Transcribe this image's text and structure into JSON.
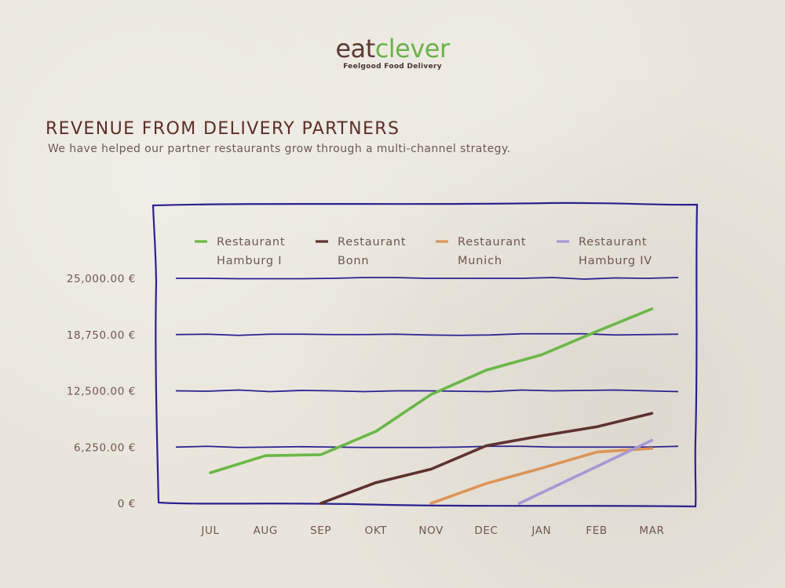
{
  "logo": {
    "word_part1": "eat",
    "word_part2": "clever",
    "tagline": "Feelgood Food Delivery"
  },
  "header": {
    "title": "REVENUE FROM DELIVERY PARTNERS",
    "subtitle": "We have helped our partner restaurants grow through a multi-channel strategy."
  },
  "colors": {
    "frame": "#2b2190",
    "title": "#5c2e28",
    "axis_text": "#6e5752"
  },
  "chart_data": {
    "type": "line",
    "title": "REVENUE FROM DELIVERY PARTNERS",
    "xlabel": "",
    "ylabel": "",
    "categories": [
      "JUL",
      "AUG",
      "SEP",
      "OKT",
      "NOV",
      "DEC",
      "JAN",
      "FEB",
      "MAR"
    ],
    "y_ticks": [
      0,
      6250,
      12500,
      18750,
      25000
    ],
    "y_tick_labels": [
      "0 €",
      "6,250.00 €",
      "12,500.00 €",
      "18,750.00 €",
      "25,000.00 €"
    ],
    "ylim": [
      0,
      25000
    ],
    "grid": true,
    "legend_position": "top",
    "series": [
      {
        "name": "Restaurant Hamburg I",
        "color": "#6ab848",
        "points": [
          [
            0,
            3400
          ],
          [
            1,
            5300
          ],
          [
            2,
            5400
          ],
          [
            3,
            8000
          ],
          [
            4,
            12100
          ],
          [
            5,
            14800
          ],
          [
            6,
            16500
          ],
          [
            7,
            19100
          ],
          [
            8,
            21600
          ]
        ]
      },
      {
        "name": "Restaurant Bonn",
        "color": "#5e3230",
        "points": [
          [
            2,
            0
          ],
          [
            3,
            2300
          ],
          [
            4,
            3800
          ],
          [
            5,
            6400
          ],
          [
            6,
            7500
          ],
          [
            7,
            8500
          ],
          [
            8,
            10000
          ]
        ]
      },
      {
        "name": "Restaurant Munich",
        "color": "#de9458",
        "points": [
          [
            4,
            0
          ],
          [
            5,
            2200
          ],
          [
            6,
            3900
          ],
          [
            7,
            5700
          ],
          [
            8,
            6100
          ]
        ]
      },
      {
        "name": "Restaurant Hamburg IV",
        "color": "#a598d4",
        "points": [
          [
            5.6,
            0
          ],
          [
            8,
            7000
          ]
        ]
      }
    ]
  }
}
